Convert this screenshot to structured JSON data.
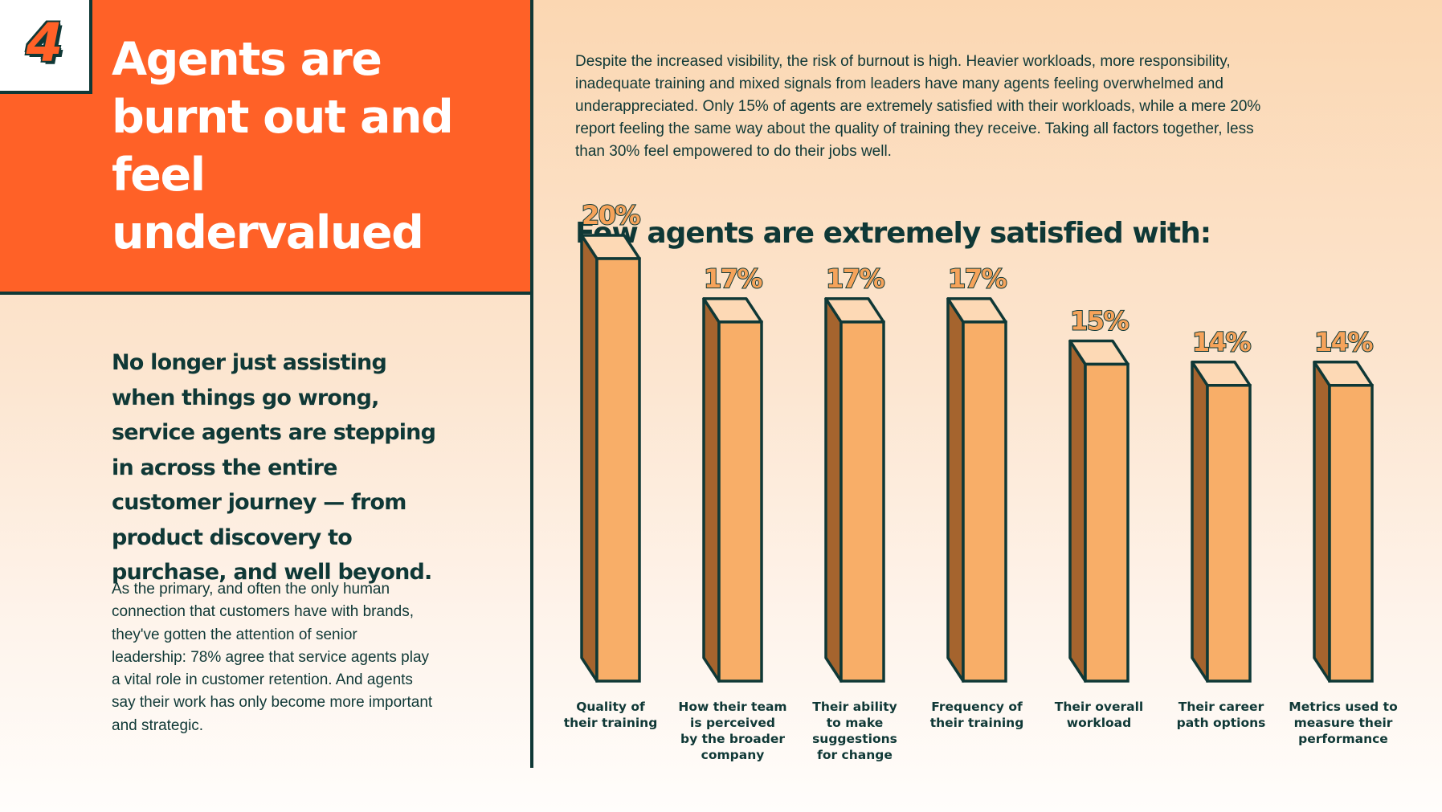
{
  "section_number": "4",
  "title": "Agents are burnt out and feel undervalued",
  "subhead": "No longer just assisting when things go wrong, service agents are stepping in across the entire customer journey — from product discovery to purchase, and well beyond.",
  "body_left": "As the primary, and often the only human connection that customers have with brands, they've gotten the attention of senior leadership: 78% agree that service agents play a vital role in customer retention. And agents say their work has only become more important and strategic.",
  "intro": "Despite the increased visibility, the risk of burnout is high. Heavier workloads, more responsibility, inadequate training and mixed signals from leaders have many agents feeling overwhelmed and underappreciated. Only 15% of agents are extremely satisfied with their workloads, while a mere 20% report feeling the same way about the quality of training they receive. Taking all factors together, less than 30% feel empowered to do their jobs well.",
  "colors": {
    "accent": "#ff6127",
    "dark": "#0f3836",
    "bar_front": "#f8ae68",
    "bar_side": "#a5642e",
    "bar_top": "#fdd9b5"
  },
  "chart_data": {
    "type": "bar",
    "title": "Few agents are extremely satisfied with:",
    "categories": [
      [
        "Quality of",
        "their training"
      ],
      [
        "How their team",
        "is perceived",
        "by the broader",
        "company"
      ],
      [
        "Their ability",
        "to make",
        "suggestions",
        "for change"
      ],
      [
        "Frequency of",
        "their training"
      ],
      [
        "Their overall",
        "workload"
      ],
      [
        "Their career",
        "path options"
      ],
      [
        "Metrics used to",
        "measure their",
        "performance"
      ]
    ],
    "values": [
      20,
      17,
      17,
      17,
      15,
      14,
      14
    ],
    "value_labels": [
      "20%",
      "17%",
      "17%",
      "17%",
      "15%",
      "14%",
      "14%"
    ],
    "xlabel": "",
    "ylabel": "",
    "ylim": [
      0,
      20
    ],
    "grid": false,
    "legend": "none"
  }
}
